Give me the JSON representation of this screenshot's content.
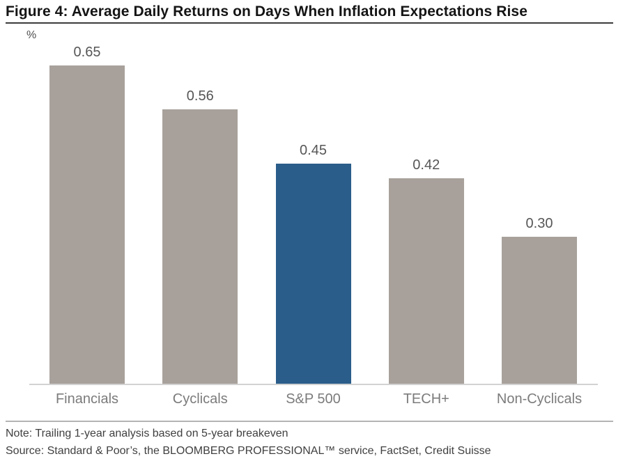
{
  "chart_data": {
    "type": "bar",
    "title": "Figure 4: Average Daily Returns on Days When Inflation Expectations Rise",
    "xlabel": "",
    "ylabel": "%",
    "categories": [
      "Financials",
      "Cyclicals",
      "S&P 500",
      "TECH+",
      "Non-Cyclicals"
    ],
    "values": [
      0.65,
      0.56,
      0.45,
      0.42,
      0.3
    ],
    "value_labels": [
      "0.65",
      "0.56",
      "0.45",
      "0.42",
      "0.30"
    ],
    "highlight": {
      "index": 2,
      "category": "S&P 500"
    },
    "colors": {
      "bar_default": "#a8a19b",
      "bar_highlight": "#2a5d8a",
      "axis_line": "#d2d2d2"
    },
    "ylim": [
      0,
      0.7
    ],
    "grid": false,
    "legend": "none"
  },
  "footer": {
    "note": "Note: Trailing 1-year analysis based on 5-year breakeven",
    "source": "Source: Standard & Poor’s, the BLOOMBERG PROFESSIONAL™ service, FactSet, Credit Suisse"
  }
}
